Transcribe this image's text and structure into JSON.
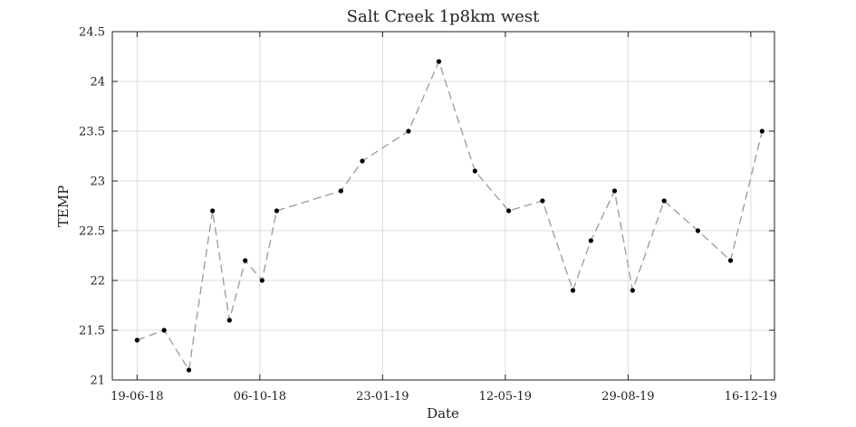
{
  "chart_data": {
    "type": "line",
    "title": "Salt Creek 1p8km west",
    "xlabel": "Date",
    "ylabel": "TEMP",
    "ylim": [
      21,
      24.5
    ],
    "xlim": [
      "2018-05-28",
      "2020-01-06"
    ],
    "grid": true,
    "y_ticks": [
      21,
      21.5,
      22,
      22.5,
      23,
      23.5,
      24,
      24.5
    ],
    "y_tick_labels": [
      "21",
      "21.5",
      "22",
      "22.5",
      "23",
      "23.5",
      "24",
      "24.5"
    ],
    "x_ticks": [
      "2018-06-19",
      "2018-10-06",
      "2019-01-23",
      "2019-05-12",
      "2019-08-29",
      "2019-12-16"
    ],
    "x_tick_labels": [
      "19-06-18",
      "06-10-18",
      "23-01-19",
      "12-05-19",
      "29-08-19",
      "16-12-19"
    ],
    "series": [
      {
        "line_style": "dashed",
        "line_color": "#9a9a9a",
        "marker_color": "#000000",
        "x": [
          "2018-06-19",
          "2018-07-13",
          "2018-08-04",
          "2018-08-25",
          "2018-09-09",
          "2018-09-23",
          "2018-10-08",
          "2018-10-21",
          "2018-12-17",
          "2019-01-05",
          "2019-02-15",
          "2019-03-14",
          "2019-04-15",
          "2019-05-15",
          "2019-06-14",
          "2019-07-11",
          "2019-07-27",
          "2019-08-17",
          "2019-09-02",
          "2019-09-30",
          "2019-10-30",
          "2019-11-28",
          "2019-12-26"
        ],
        "y": [
          21.4,
          21.5,
          21.1,
          22.7,
          21.6,
          22.2,
          22.0,
          22.7,
          22.9,
          23.2,
          23.5,
          24.2,
          23.1,
          22.7,
          22.8,
          21.9,
          22.4,
          22.9,
          21.9,
          22.8,
          22.5,
          22.2,
          23.5
        ]
      }
    ]
  }
}
